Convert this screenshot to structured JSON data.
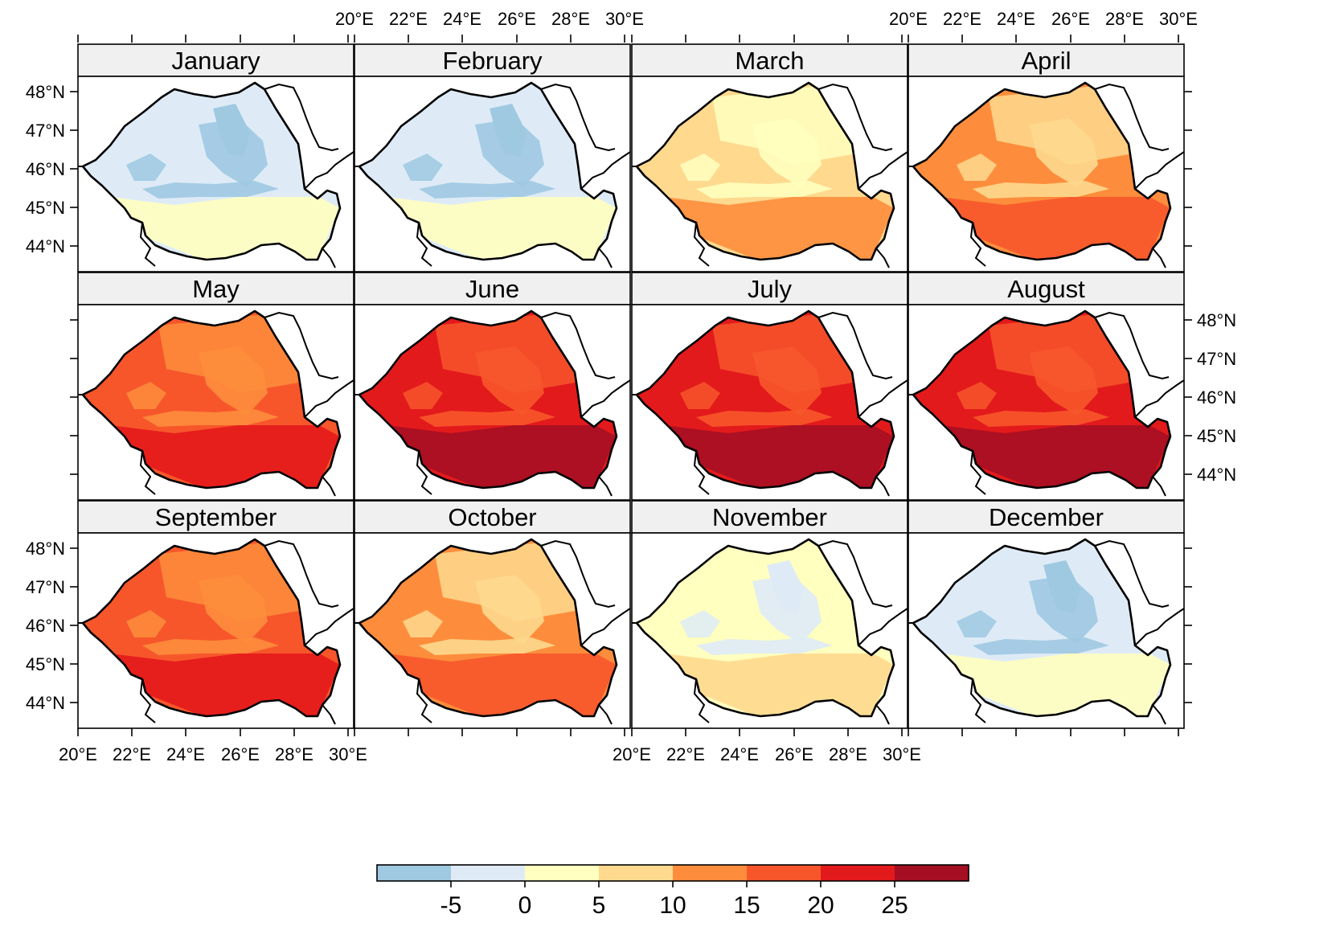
{
  "panels": [
    {
      "name": "January",
      "level": 1
    },
    {
      "name": "February",
      "level": 1
    },
    {
      "name": "March",
      "level": 3
    },
    {
      "name": "April",
      "level": 4
    },
    {
      "name": "May",
      "level": 5
    },
    {
      "name": "June",
      "level": 6
    },
    {
      "name": "July",
      "level": 6
    },
    {
      "name": "August",
      "level": 6
    },
    {
      "name": "September",
      "level": 5
    },
    {
      "name": "October",
      "level": 4
    },
    {
      "name": "November",
      "level": 2
    },
    {
      "name": "December",
      "level": 1
    }
  ],
  "x_ticks": [
    "20°E",
    "22°E",
    "24°E",
    "26°E",
    "28°E",
    "30°E"
  ],
  "y_ticks": [
    "48°N",
    "47°N",
    "46°N",
    "45°N",
    "44°N"
  ],
  "legend": {
    "breaks": [
      "-5",
      "0",
      "5",
      "10",
      "15",
      "20",
      "25"
    ],
    "colors": [
      "#9ec9e1",
      "#deebf7",
      "#ffffbf",
      "#fed98e",
      "#fd8d3c",
      "#f7562b",
      "#e31a1c",
      "#a50f24"
    ]
  }
}
